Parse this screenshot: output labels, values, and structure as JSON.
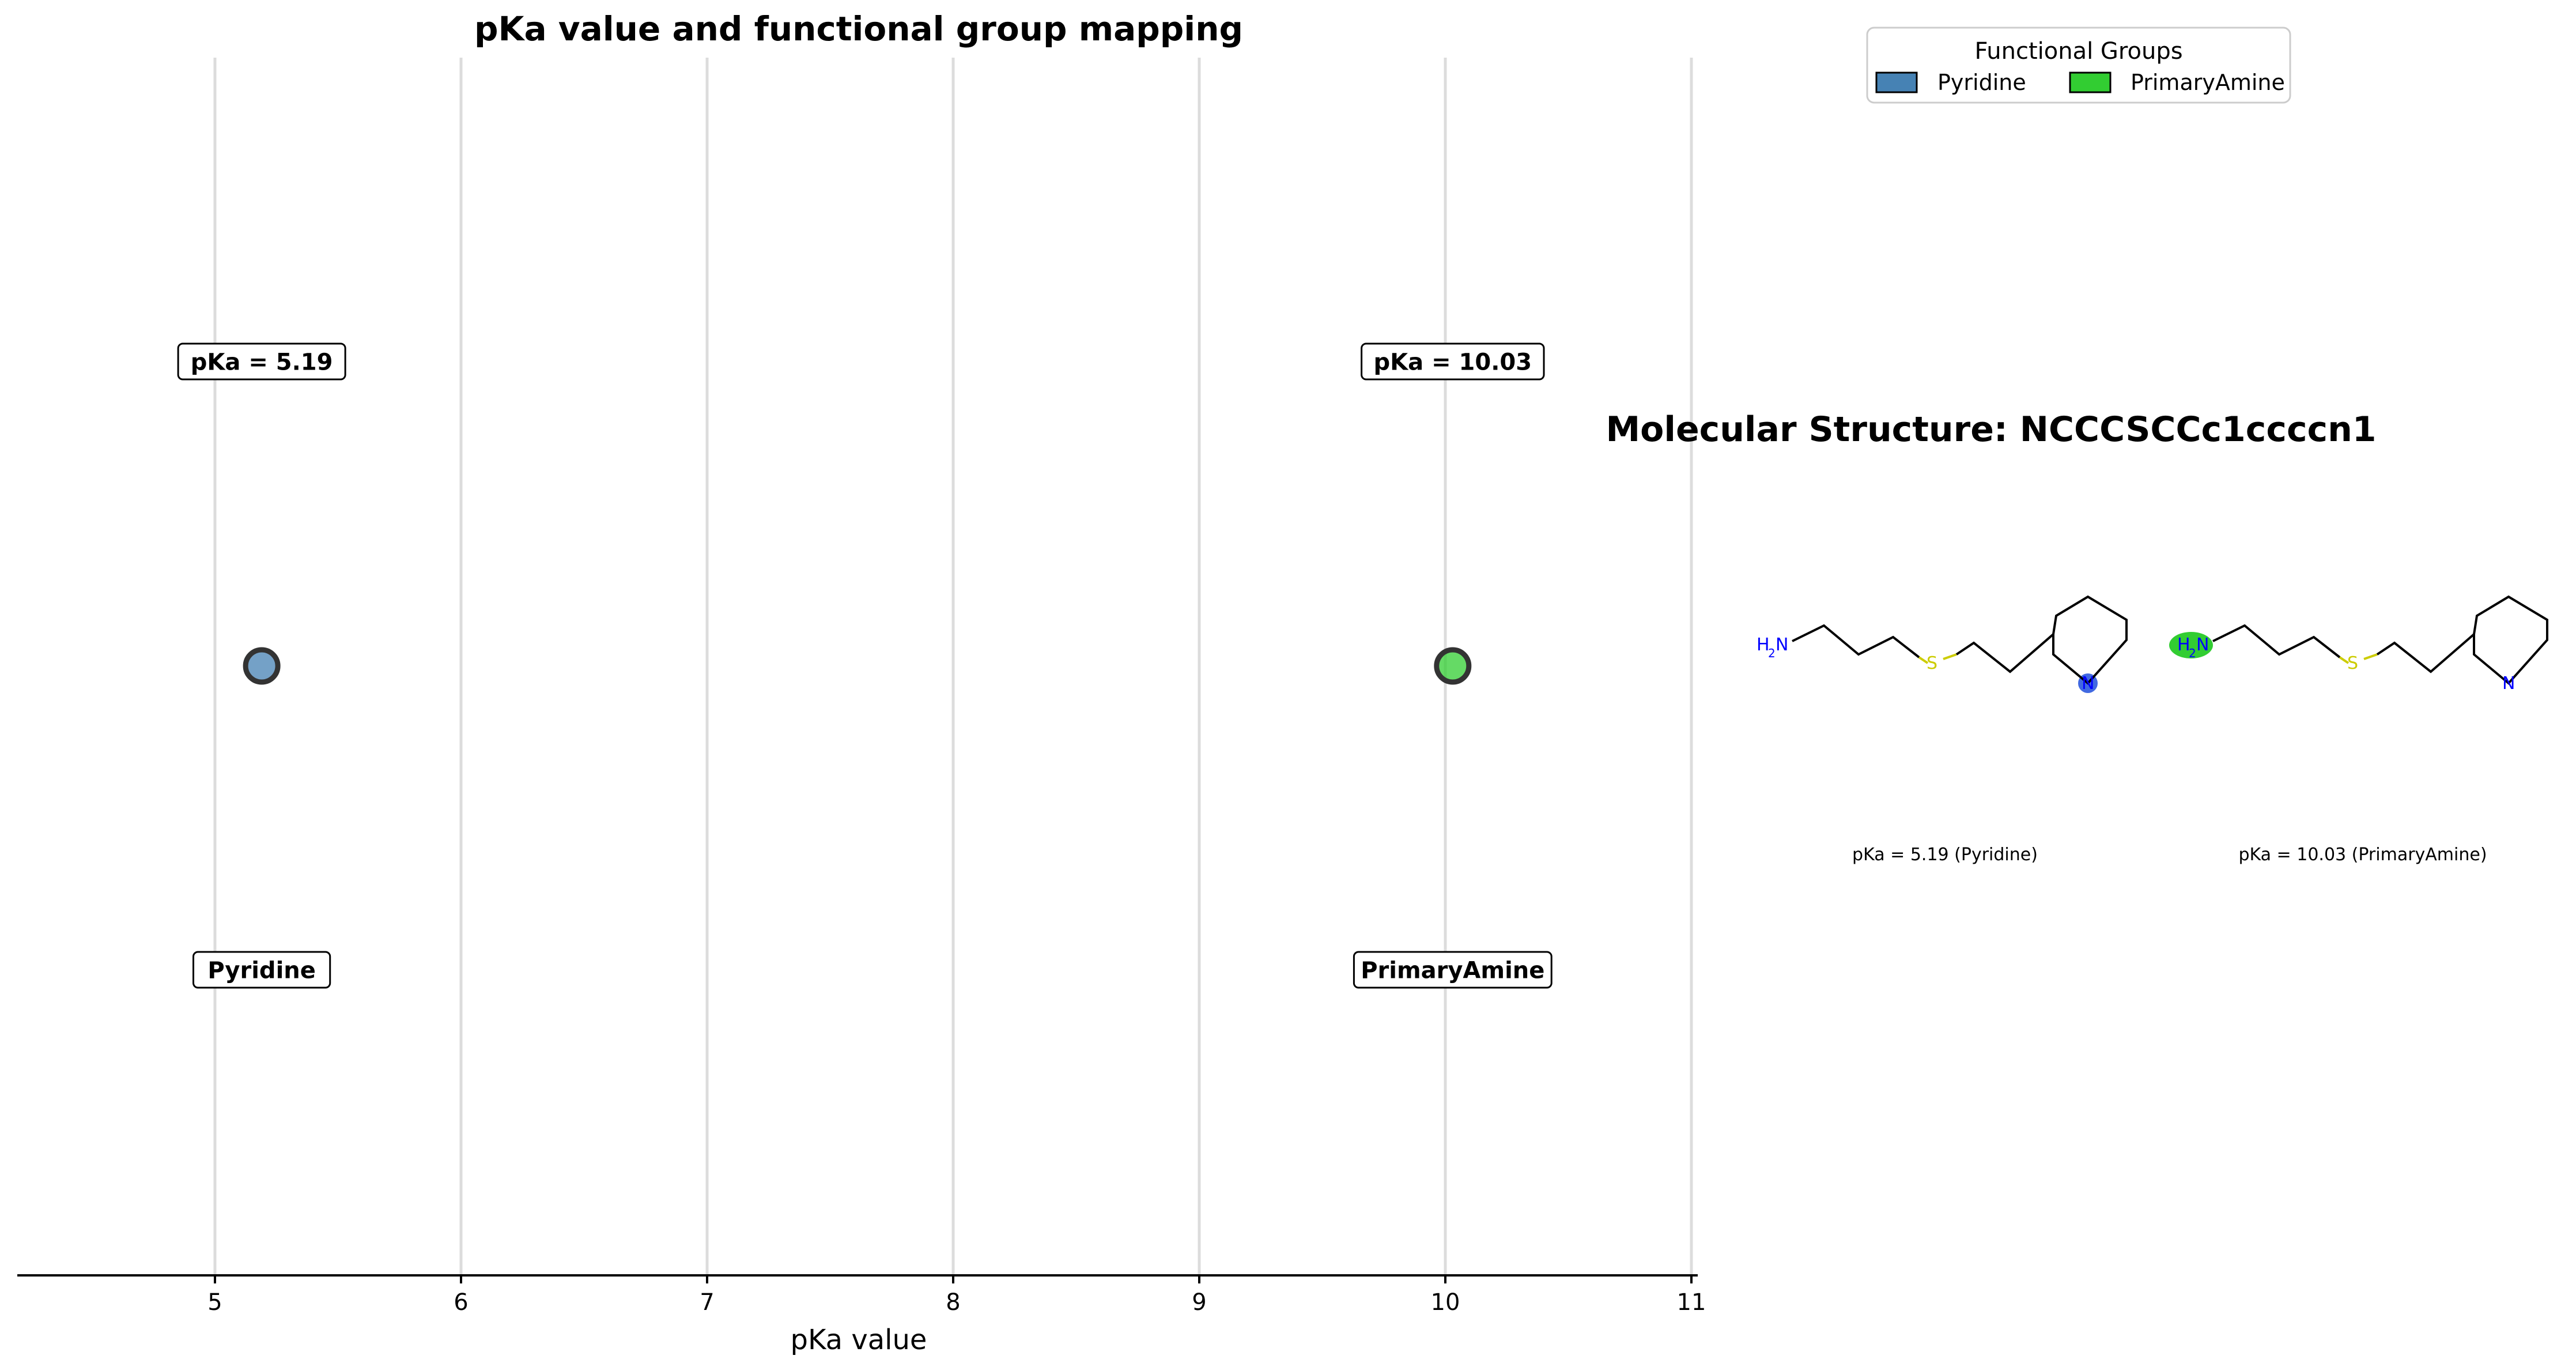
{
  "chart_data": [
    {
      "type": "scatter",
      "title": "pKa value and functional group mapping",
      "xlabel": "pKa value",
      "ylabel": "",
      "xlim": [
        4.2,
        11.03
      ],
      "xticks": [
        5,
        6,
        7,
        8,
        9,
        10,
        11
      ],
      "grid": "vertical lines at ticks",
      "points": [
        {
          "group": "Pyridine",
          "x": 5.19,
          "color": "#4682b4",
          "pka_label": "pKa = 5.19",
          "group_label": "Pyridine"
        },
        {
          "group": "PrimaryAmine",
          "x": 10.03,
          "color": "#32cd32",
          "pka_label": "pKa = 10.03",
          "group_label": "PrimaryAmine"
        }
      ]
    }
  ],
  "legend": {
    "title": "Functional Groups",
    "placement": "top-right",
    "items": [
      {
        "label": "Pyridine",
        "color": "#4682b4"
      },
      {
        "label": "PrimaryAmine",
        "color": "#32cd32"
      }
    ]
  },
  "molecule": {
    "title": "Molecular Structure: NCCCSCCc1ccccn1",
    "atom_n": "N",
    "atom_s": "S",
    "atom_h2n_h": "H",
    "atom_h2n_sub": "2",
    "atom_h2n_n": "N",
    "panels": [
      {
        "caption": "pKa = 5.19 (Pyridine)",
        "highlight": "pyridine-N",
        "highlight_color": "#4169e1"
      },
      {
        "caption": "pKa = 10.03 (PrimaryAmine)",
        "highlight": "amine-N",
        "highlight_color": "#32cd32"
      }
    ],
    "colors": {
      "nitrogen": "#0000ff",
      "sulfur": "#cccc00",
      "bond": "#000000"
    }
  }
}
